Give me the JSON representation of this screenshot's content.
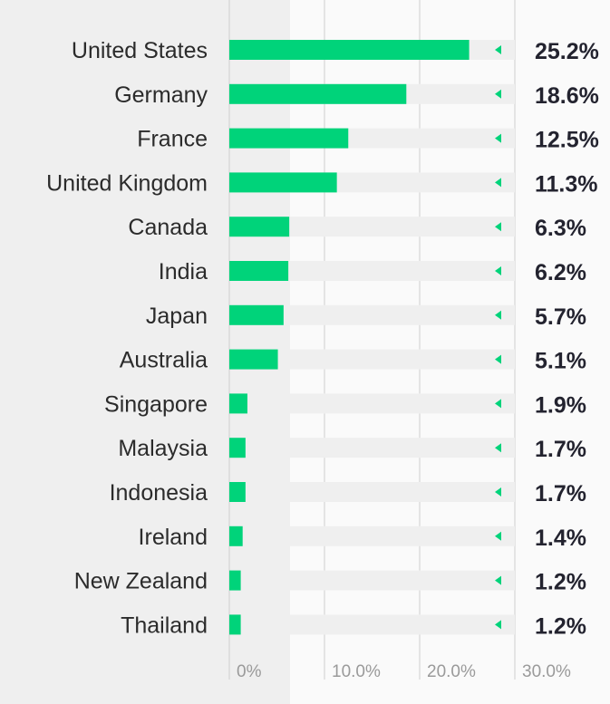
{
  "chart_data": {
    "type": "bar",
    "orientation": "horizontal",
    "categories": [
      "United States",
      "Germany",
      "France",
      "United Kingdom",
      "Canada",
      "India",
      "Japan",
      "Australia",
      "Singapore",
      "Malaysia",
      "Indonesia",
      "Ireland",
      "New Zealand",
      "Thailand"
    ],
    "values": [
      25.2,
      18.6,
      12.5,
      11.3,
      6.3,
      6.2,
      5.7,
      5.1,
      1.9,
      1.7,
      1.7,
      1.4,
      1.2,
      1.2
    ],
    "value_labels": [
      "25.2%",
      "18.6%",
      "12.5%",
      "11.3%",
      "6.3%",
      "6.2%",
      "5.7%",
      "5.1%",
      "1.9%",
      "1.7%",
      "1.7%",
      "1.4%",
      "1.2%",
      "1.2%"
    ],
    "xticks": [
      0,
      10,
      20,
      30
    ],
    "xtick_labels": [
      "0%",
      "10.0%",
      "20.0%",
      "30.0%"
    ],
    "xlim": [
      0,
      30
    ],
    "grid": true,
    "legend": "none",
    "colors": {
      "bar": "#00d37a",
      "marker": "#00d37a",
      "track": "#efefef",
      "gridline": "#cfcfcf",
      "label_panel": "#efefef"
    }
  }
}
